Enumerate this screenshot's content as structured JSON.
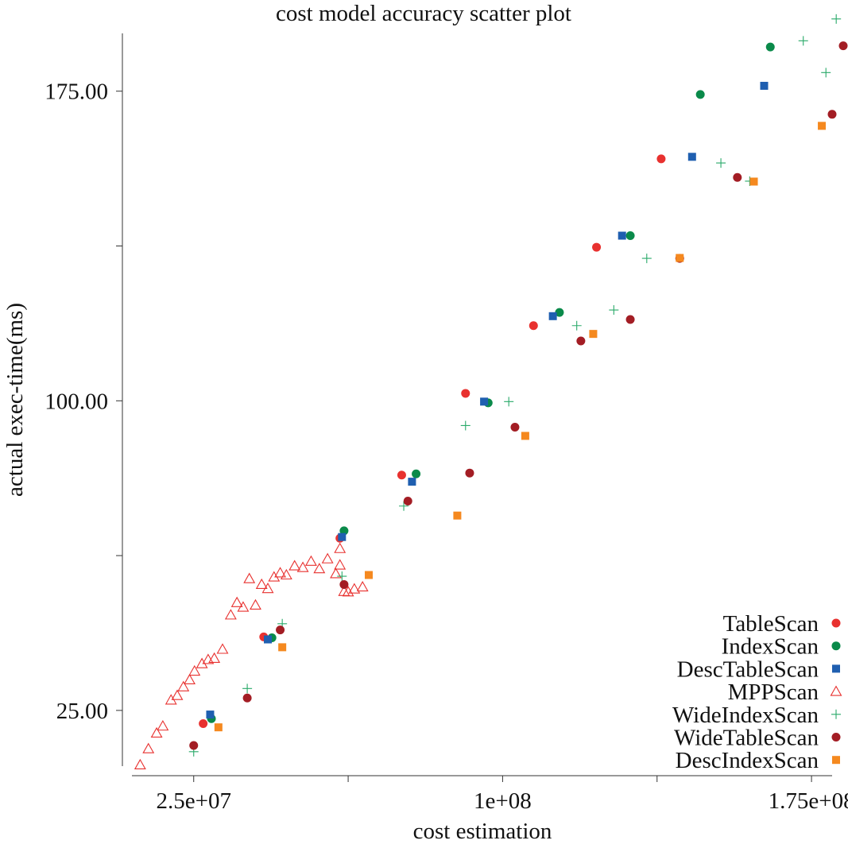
{
  "chart_data": {
    "type": "scatter",
    "title": "cost model accuracy scatter plot",
    "xlabel": "cost estimation",
    "ylabel": "actual exec-time(ms)",
    "xlim": [
      10000000,
      180000000
    ],
    "ylim": [
      11500,
      189000
    ],
    "x_ticks": [
      25000000,
      62500000,
      100000000,
      137500000,
      175000000
    ],
    "x_tick_labels": [
      "2.5e+07",
      "",
      "1e+08",
      "",
      "1.75e+08"
    ],
    "y_ticks": [
      25000,
      62500,
      100000,
      137500,
      175000
    ],
    "y_tick_labels": [
      "25.00",
      "",
      "100.00",
      "",
      "175.00"
    ],
    "grid": false,
    "legend_position": "bottom-right",
    "series": [
      {
        "name": "TableScan",
        "marker": "circle",
        "color": "#e8312f",
        "points": [
          [
            27300000,
            21800
          ],
          [
            42000000,
            42800
          ],
          [
            60500000,
            66700
          ],
          [
            75500000,
            82000
          ],
          [
            91000000,
            101800
          ],
          [
            107500000,
            118200
          ],
          [
            122800000,
            137200
          ],
          [
            138500000,
            158600
          ]
        ]
      },
      {
        "name": "IndexScan",
        "marker": "circle",
        "color": "#0a8a4a",
        "points": [
          [
            29300000,
            23000
          ],
          [
            44000000,
            42600
          ],
          [
            61500000,
            68500
          ],
          [
            79000000,
            82300
          ],
          [
            96500000,
            99500
          ],
          [
            113800000,
            121400
          ],
          [
            131000000,
            140000
          ],
          [
            148000000,
            174200
          ],
          [
            165000000,
            185700
          ]
        ]
      },
      {
        "name": "DescTableScan",
        "marker": "square",
        "color": "#1f5fb0",
        "points": [
          [
            29000000,
            24000
          ],
          [
            43000000,
            42200
          ],
          [
            61000000,
            67000
          ],
          [
            78000000,
            80400
          ],
          [
            95500000,
            99800
          ],
          [
            112200000,
            120500
          ],
          [
            129000000,
            140000
          ],
          [
            146000000,
            159100
          ],
          [
            163500000,
            176300
          ]
        ]
      },
      {
        "name": "MPPScan",
        "marker": "triangle",
        "color": "#e8312f",
        "points": [
          [
            12000000,
            11800
          ],
          [
            14000000,
            15700
          ],
          [
            16000000,
            19500
          ],
          [
            17500000,
            21200
          ],
          [
            19500000,
            27500
          ],
          [
            21000000,
            28600
          ],
          [
            22500000,
            30700
          ],
          [
            24000000,
            32400
          ],
          [
            25200000,
            34500
          ],
          [
            27000000,
            36300
          ],
          [
            28500000,
            37300
          ],
          [
            30000000,
            37600
          ],
          [
            32000000,
            39800
          ],
          [
            34000000,
            48100
          ],
          [
            35500000,
            51100
          ],
          [
            37000000,
            50000
          ],
          [
            38500000,
            56900
          ],
          [
            40000000,
            50500
          ],
          [
            41500000,
            55500
          ],
          [
            43000000,
            54500
          ],
          [
            44500000,
            57300
          ],
          [
            46000000,
            58300
          ],
          [
            47500000,
            57800
          ],
          [
            49500000,
            60000
          ],
          [
            51500000,
            59600
          ],
          [
            53500000,
            61100
          ],
          [
            55500000,
            59300
          ],
          [
            57500000,
            61700
          ],
          [
            59500000,
            58100
          ],
          [
            60500000,
            60200
          ],
          [
            61500000,
            53800
          ],
          [
            60500000,
            64200
          ],
          [
            62500000,
            53700
          ],
          [
            64000000,
            54400
          ],
          [
            66000000,
            54900
          ]
        ]
      },
      {
        "name": "WideIndexScan",
        "marker": "plus",
        "color": "#2aaa6a",
        "points": [
          [
            25000000,
            15000
          ],
          [
            38000000,
            30300
          ],
          [
            46500000,
            46000
          ],
          [
            61000000,
            57500
          ],
          [
            76000000,
            74500
          ],
          [
            91000000,
            94000
          ],
          [
            101500000,
            99800
          ],
          [
            118000000,
            118200
          ],
          [
            127000000,
            122000
          ],
          [
            135000000,
            134500
          ],
          [
            153000000,
            157600
          ],
          [
            160000000,
            153200
          ],
          [
            178500000,
            179500
          ],
          [
            173000000,
            187200
          ],
          [
            181000000,
            192500
          ]
        ]
      },
      {
        "name": "WideTableScan",
        "marker": "circle",
        "color": "#a31d24",
        "points": [
          [
            25000000,
            16500
          ],
          [
            38000000,
            28000
          ],
          [
            46000000,
            44500
          ],
          [
            61500000,
            55500
          ],
          [
            77000000,
            75700
          ],
          [
            92000000,
            82500
          ],
          [
            103000000,
            93600
          ],
          [
            119000000,
            114500
          ],
          [
            131000000,
            119700
          ],
          [
            143000000,
            134500
          ],
          [
            157000000,
            154100
          ],
          [
            180000000,
            169400
          ],
          [
            195500000,
            186000
          ]
        ]
      },
      {
        "name": "DescIndexScan",
        "marker": "square",
        "color": "#f5891f",
        "points": [
          [
            31000000,
            20900
          ],
          [
            46500000,
            40300
          ],
          [
            67500000,
            57800
          ],
          [
            89000000,
            72200
          ],
          [
            105500000,
            91500
          ],
          [
            122000000,
            116200
          ],
          [
            143000000,
            134600
          ],
          [
            161000000,
            153100
          ],
          [
            177500000,
            166600
          ]
        ]
      }
    ]
  }
}
